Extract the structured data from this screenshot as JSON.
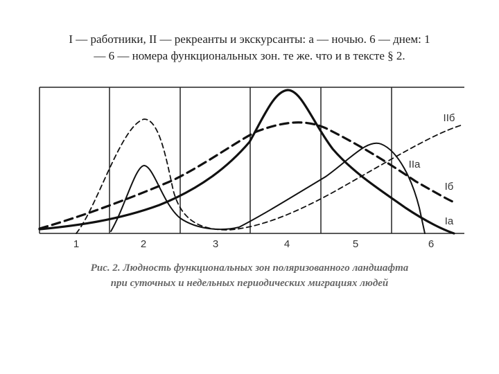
{
  "header": {
    "lines": [
      "I — работники, II — рекреанты и экскурсанты: а — ночью. 6 — днем: 1",
      "— 6 — номера функциональных зон. те же. что и в тексте § 2."
    ]
  },
  "figure": {
    "zones": [
      "1",
      "2",
      "3",
      "4",
      "5",
      "6"
    ],
    "curve_labels": [
      "IIб",
      "IIа",
      "Iб",
      "Iа"
    ],
    "caption": [
      "Рис. 2. Людность функциональных зон поляризованного ландшафта",
      "при суточных и недельных периодических миграциях людей"
    ]
  }
}
